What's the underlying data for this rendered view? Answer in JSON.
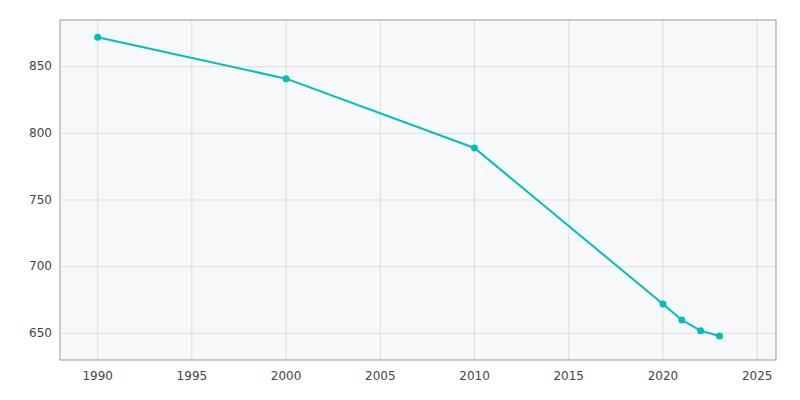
{
  "chart_data": {
    "type": "line",
    "x": [
      1990,
      2000,
      2010,
      2020,
      2021,
      2022,
      2023
    ],
    "values": [
      872,
      841,
      789,
      672,
      660,
      652,
      648
    ],
    "color": "#00BEBE",
    "marker": "circle",
    "xlim": [
      1988,
      2026
    ],
    "ylim": [
      630,
      885
    ],
    "xticks": [
      1990,
      1995,
      2000,
      2005,
      2010,
      2015,
      2020,
      2025
    ],
    "yticks": [
      650,
      700,
      750,
      800,
      850
    ],
    "grid": true
  }
}
